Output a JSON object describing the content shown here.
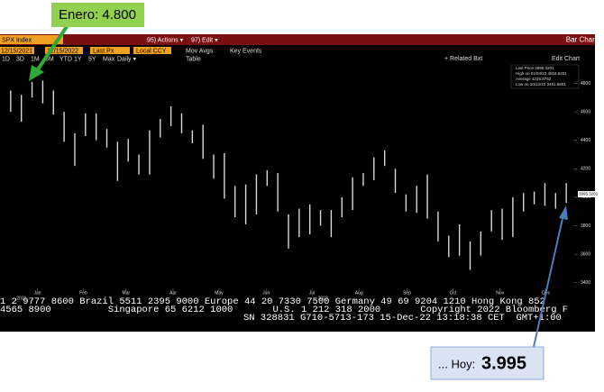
{
  "header": {
    "security": "SPX Index",
    "actions": "95) Actions ▾",
    "edit": "97) Edit ▾",
    "chart_type": "Bar Chart"
  },
  "toolbar": {
    "start_date": "12/15/2021",
    "end_date": "12/15/2022",
    "field": "Last Px",
    "currency": "Local CCY",
    "mov_avgs": "Mov Avgs",
    "key_events": "Key Events",
    "related": "+ Related Bxt",
    "edit_chart": "Edit Chart"
  },
  "periods": [
    "1D",
    "3D",
    "1M",
    "6M",
    "YTD",
    "1Y",
    "5Y",
    "Max",
    "Daily ▾",
    "Table"
  ],
  "legend": [
    "Last Price 3995.3201",
    "High on 01/04/22 4818.6201",
    "Average 4235.8762",
    "Low on 10/12/22 3491.5801"
  ],
  "chart_data": {
    "type": "ohlc",
    "color": "#d8d8d8",
    "x": [
      0,
      1,
      2,
      3,
      4,
      5,
      6,
      7,
      8,
      9,
      10,
      11,
      12,
      13,
      14,
      15,
      16,
      17,
      18,
      19,
      20,
      21,
      22,
      23,
      24,
      25,
      26,
      27,
      28,
      29,
      30,
      31,
      32,
      33,
      34,
      35,
      36,
      37,
      38,
      39,
      40,
      41,
      42,
      43,
      44,
      45,
      46,
      47,
      48,
      49,
      50,
      51,
      52
    ],
    "highs": [
      4750,
      4720,
      4810,
      4820,
      4750,
      4600,
      4450,
      4590,
      4590,
      4480,
      4390,
      4410,
      4300,
      4470,
      4550,
      4640,
      4590,
      4470,
      4510,
      4300,
      4310,
      4080,
      4090,
      4160,
      4190,
      4170,
      3880,
      3920,
      3950,
      3910,
      3910,
      4000,
      4140,
      4170,
      4280,
      4330,
      4200,
      4020,
      4080,
      4160,
      3900,
      3730,
      3810,
      3690,
      3760,
      3910,
      3920,
      4000,
      4030,
      4040,
      4100,
      4030,
      4100
    ],
    "lows": [
      4600,
      4530,
      4700,
      4660,
      4580,
      4390,
      4220,
      4430,
      4400,
      4350,
      4115,
      4250,
      4160,
      4160,
      4420,
      4500,
      4450,
      4380,
      4270,
      4130,
      3990,
      3860,
      3810,
      3880,
      4080,
      3900,
      3640,
      3720,
      3740,
      3800,
      3720,
      3860,
      3910,
      4080,
      4120,
      4220,
      4030,
      3900,
      3890,
      3850,
      3690,
      3580,
      3590,
      3490,
      3590,
      3760,
      3700,
      3720,
      3900,
      3950,
      3940,
      3920,
      3960
    ],
    "xlim": [
      -1,
      53
    ],
    "xticks": [
      {
        "value": 2.5,
        "label": "Jan"
      },
      {
        "value": 6.8,
        "label": "Feb"
      },
      {
        "value": 10.8,
        "label": "Mar"
      },
      {
        "value": 15.2,
        "label": "Apr"
      },
      {
        "value": 19.5,
        "label": "May"
      },
      {
        "value": 23.9,
        "label": "Jun"
      },
      {
        "value": 28.2,
        "label": "Jul"
      },
      {
        "value": 32.6,
        "label": "Aug"
      },
      {
        "value": 37.1,
        "label": "Sep"
      },
      {
        "value": 41.4,
        "label": "Oct"
      },
      {
        "value": 45.8,
        "label": "Nov"
      },
      {
        "value": 50.1,
        "label": "Dec"
      }
    ],
    "years": [
      {
        "value": 0,
        "label": "2021"
      },
      {
        "value": 28.2,
        "label": "2022"
      }
    ],
    "ylim": [
      3360,
      4930
    ],
    "yticks": [
      3400,
      3600,
      3800,
      4000,
      4200,
      4400,
      4600,
      4800
    ],
    "last_label": "3995.3201"
  },
  "ticker": [
    "1 2 9777 8600 Brazil 5511 2395 9000 Europe 44 20 7330 7500 Germany 49 69 9204 1210 Hong Kong 852",
    "4565 8900          Singapore 65 6212 1000       U.S. 1 212 318 2000       Copyright 2022 Bloomberg F",
    "SN 328831 G710-5713-173 15-Dec-22 13:18:38 CET  GMT+1:00"
  ],
  "annotations": {
    "january": "Enero: 4.800",
    "today_prefix": "... Hoy:",
    "today_value": "3.995"
  }
}
